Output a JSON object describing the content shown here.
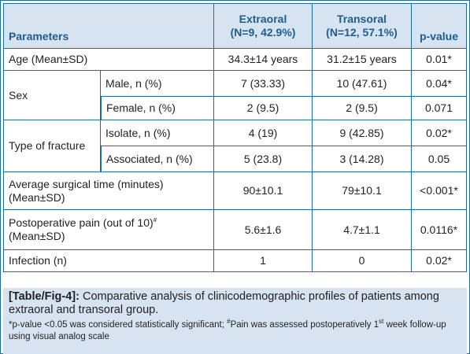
{
  "table": {
    "headers": {
      "parameters": "Parameters",
      "extraoral_line1": "Extraoral",
      "extraoral_line2": "(N=9, 42.9%)",
      "transoral_line1": "Transoral",
      "transoral_line2": "(N=12, 57.1%)",
      "pvalue": "p-value"
    },
    "rows": {
      "age": {
        "label": "Age (Mean±SD)",
        "extraoral": "34.3±14 years",
        "transoral": "31.2±15 years",
        "p": "0.01*"
      },
      "sex": {
        "label": "Sex",
        "male": {
          "label": "Male, n (%)",
          "extraoral": "7 (33.33)",
          "transoral": "10 (47.61)",
          "p": "0.04*"
        },
        "female": {
          "label": "Female, n (%)",
          "extraoral": "2 (9.5)",
          "transoral": "2 (9.5)",
          "p": "0.071"
        }
      },
      "fracture": {
        "label": "Type of fracture",
        "isolate": {
          "label": "Isolate, n (%)",
          "extraoral": "4 (19)",
          "transoral": "9 (42.85)",
          "p": "0.02*"
        },
        "associated": {
          "label": "Associated, n (%)",
          "extraoral": "5 (23.8)",
          "transoral": "3 (14.28)",
          "p": "0.05"
        }
      },
      "surgical_time": {
        "label_line1": "Average surgical time (minutes)",
        "label_line2": "(Mean±SD)",
        "extraoral": "90±10.1",
        "transoral": "79±10.1",
        "p": "<0.001*"
      },
      "pain": {
        "label_line1": "Postoperative pain (out of 10)",
        "label_sup": "#",
        "label_line2": "(Mean±SD)",
        "extraoral": "5.6±1.6",
        "transoral": "4.7±1.1",
        "p": "0.0116*"
      },
      "infection": {
        "label": "Infection (n)",
        "extraoral": "1",
        "transoral": "0",
        "p": "0.02*"
      }
    }
  },
  "caption": {
    "title": "[Table/Fig-4]:",
    "text": "Comparative analysis of clinicodemographic profiles of patients among extraoral and transoral group.",
    "note_part1": "*p-value <0.05 was considered statistically significant; ",
    "note_hash": "#",
    "note_part2": "Pain was assessed postoperatively 1",
    "note_sup": "st",
    "note_part3": " week follow-up using visual analog scale"
  },
  "colors": {
    "border": "#1f6f9a",
    "header_bg": "#d6e3f0",
    "header_text": "#1f5e8c"
  }
}
